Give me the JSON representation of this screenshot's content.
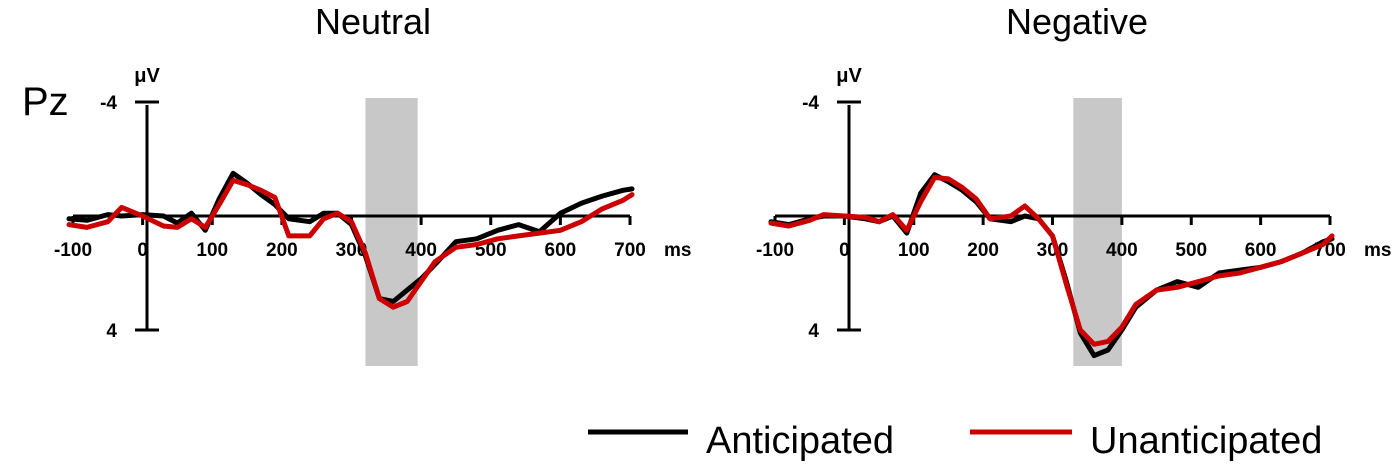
{
  "channel_label": "Pz",
  "legend": {
    "items": [
      {
        "label": "Anticipated",
        "color": "#000000"
      },
      {
        "label": "Unanticipated",
        "color": "#cc0000"
      }
    ]
  },
  "colors": {
    "shade": "#c8c8c8",
    "axis": "#000000"
  },
  "chart_data": [
    {
      "type": "line",
      "title": "Neutral",
      "ylabel": "μV",
      "xlabel": "ms",
      "xlim": [
        -100,
        700
      ],
      "ylim": [
        -4,
        4
      ],
      "y_inverted": true,
      "x_ticks": [
        -100,
        0,
        100,
        200,
        300,
        400,
        500,
        600,
        700
      ],
      "y_ticks": [
        -4,
        4
      ],
      "shaded_window": [
        320,
        395
      ],
      "series": [
        {
          "name": "Anticipated",
          "color": "#000000",
          "x": [
            -110,
            -80,
            -50,
            -30,
            0,
            30,
            50,
            70,
            90,
            110,
            130,
            150,
            170,
            190,
            210,
            240,
            260,
            280,
            300,
            320,
            340,
            360,
            380,
            400,
            420,
            450,
            480,
            510,
            540,
            570,
            600,
            630,
            660,
            690,
            720
          ],
          "y": [
            0.1,
            0.15,
            -0.05,
            0,
            -0.05,
            0,
            0.25,
            -0.1,
            0.5,
            -0.6,
            -1.5,
            -1.15,
            -0.75,
            -0.4,
            0.1,
            0.2,
            -0.1,
            -0.1,
            0.3,
            1.4,
            2.9,
            3.0,
            2.6,
            2.2,
            1.7,
            0.9,
            0.8,
            0.5,
            0.3,
            0.55,
            -0.1,
            -0.45,
            -0.7,
            -0.9,
            -0.95
          ]
        },
        {
          "name": "Unanticipated",
          "color": "#cc0000",
          "x": [
            -110,
            -80,
            -50,
            -30,
            0,
            30,
            50,
            70,
            90,
            110,
            130,
            150,
            170,
            190,
            210,
            240,
            260,
            280,
            300,
            320,
            340,
            360,
            380,
            400,
            420,
            450,
            480,
            510,
            540,
            570,
            600,
            630,
            660,
            690,
            720
          ],
          "y": [
            0.3,
            0.4,
            0.2,
            -0.3,
            0,
            0.35,
            0.4,
            0.1,
            0.4,
            -0.4,
            -1.25,
            -1.1,
            -0.9,
            -0.65,
            0.7,
            0.7,
            0.1,
            -0.1,
            0.2,
            1.3,
            2.9,
            3.2,
            3.0,
            2.3,
            1.6,
            1.1,
            1.0,
            0.8,
            0.7,
            0.6,
            0.5,
            0.2,
            -0.25,
            -0.55,
            -0.75
          ]
        }
      ]
    },
    {
      "type": "line",
      "title": "Negative",
      "ylabel": "μV",
      "xlabel": "ms",
      "xlim": [
        -100,
        700
      ],
      "ylim": [
        -4,
        4
      ],
      "y_inverted": true,
      "x_ticks": [
        -100,
        0,
        100,
        200,
        300,
        400,
        500,
        600,
        700
      ],
      "y_ticks": [
        -4,
        4
      ],
      "shaded_window": [
        330,
        400
      ],
      "series": [
        {
          "name": "Anticipated",
          "color": "#000000",
          "x": [
            -110,
            -80,
            -50,
            -30,
            0,
            30,
            50,
            70,
            90,
            110,
            130,
            150,
            170,
            190,
            210,
            240,
            260,
            280,
            300,
            320,
            340,
            360,
            380,
            400,
            420,
            450,
            480,
            510,
            540,
            570,
            600,
            630,
            660,
            690,
            720
          ],
          "y": [
            0.2,
            0.3,
            0.1,
            0,
            0,
            0.1,
            0.2,
            0,
            0.6,
            -0.8,
            -1.45,
            -1.2,
            -0.9,
            -0.5,
            0.1,
            0.2,
            0,
            0.1,
            0.7,
            2.3,
            4.1,
            4.9,
            4.7,
            4.0,
            3.2,
            2.6,
            2.3,
            2.5,
            2.0,
            1.9,
            1.8,
            1.6,
            1.3,
            0.9,
            0.8
          ]
        },
        {
          "name": "Unanticipated",
          "color": "#cc0000",
          "x": [
            -110,
            -80,
            -50,
            -30,
            0,
            30,
            50,
            70,
            90,
            110,
            130,
            150,
            170,
            190,
            210,
            240,
            260,
            280,
            300,
            320,
            340,
            360,
            380,
            400,
            420,
            450,
            480,
            510,
            540,
            570,
            600,
            630,
            660,
            690,
            720
          ],
          "y": [
            0.25,
            0.35,
            0.15,
            -0.05,
            0,
            0.05,
            0.2,
            -0.05,
            0.5,
            -0.5,
            -1.35,
            -1.3,
            -1.0,
            -0.6,
            0.1,
            0,
            -0.35,
            0.1,
            0.7,
            2.4,
            4.0,
            4.5,
            4.4,
            3.9,
            3.1,
            2.6,
            2.5,
            2.3,
            2.1,
            2.0,
            1.8,
            1.6,
            1.3,
            1.0,
            0.7
          ]
        }
      ]
    }
  ]
}
